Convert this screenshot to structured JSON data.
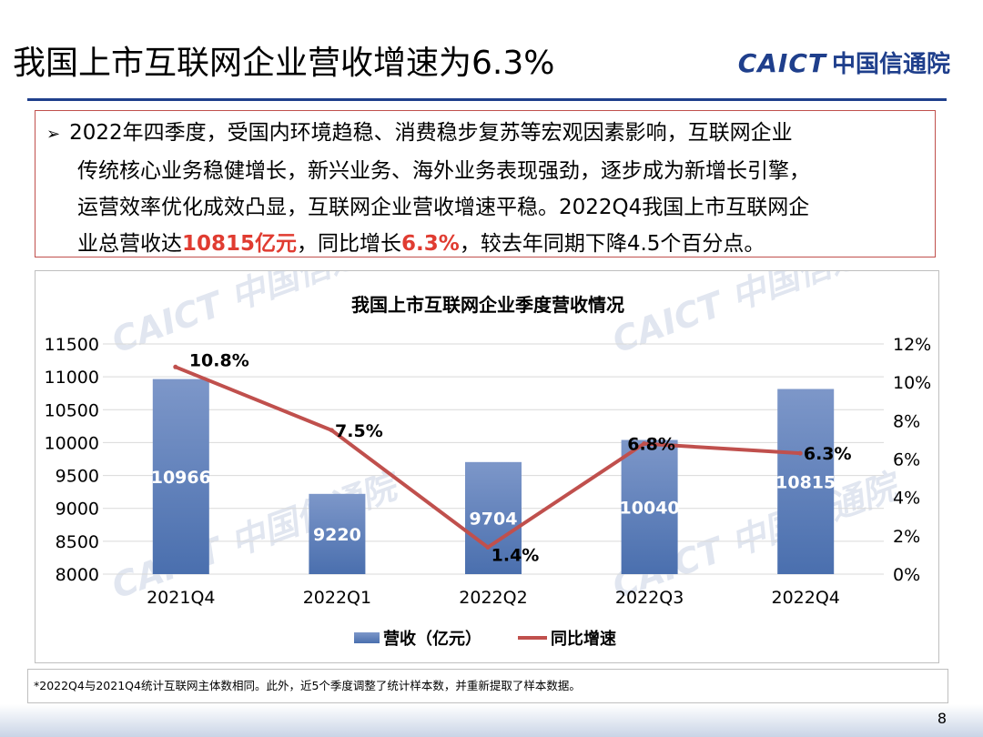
{
  "slide": {
    "title": "我国上市互联网企业营收增速为6.3%",
    "logo_en": "CAICT",
    "logo_cn": "中国信通院",
    "page_number": "8"
  },
  "summary": {
    "bullet": "➢",
    "line1": "2022年四季度，受国内环境趋稳、消费稳步复苏等宏观因素影响，互联网企业",
    "line2": "传统核心业务稳健增长，新兴业务、海外业务表现强劲，逐步成为新增长引擎，",
    "line3": "运营效率优化成效凸显，互联网企业营收增速平稳。2022Q4我国上市互联网企",
    "line4_pre": "业总营收达",
    "line4_hl1": "10815亿元",
    "line4_mid": "，同比增长",
    "line4_hl2": "6.3%",
    "line4_post": "，较去年同期下降4.5个百分点。"
  },
  "footnote": "*2022Q4与2021Q4统计互联网主体数相同。此外，近5个季度调整了统计样本数，并重新提取了样本数据。",
  "colors": {
    "bar_top": "#7d97c9",
    "bar_bottom": "#4a6fae",
    "line": "#c0504d",
    "accent": "#e03c31",
    "brand": "#1f3f8c"
  },
  "chart_data": {
    "type": "bar",
    "title": "我国上市互联网企业季度营收情况",
    "categories": [
      "2021Q4",
      "2022Q1",
      "2022Q2",
      "2022Q3",
      "2022Q4"
    ],
    "series": [
      {
        "name": "营收（亿元）",
        "type": "bar",
        "axis": "left",
        "values": [
          10966,
          9220,
          9704,
          10040,
          10815
        ],
        "labels": [
          "10966",
          "9220",
          "9704",
          "10040",
          "10815"
        ]
      },
      {
        "name": "同比增速",
        "type": "line",
        "axis": "right",
        "values": [
          10.8,
          7.5,
          1.4,
          6.8,
          6.3
        ],
        "labels": [
          "10.8%",
          "7.5%",
          "1.4%",
          "6.8%",
          "6.3%"
        ]
      }
    ],
    "y_left": {
      "min": 8000,
      "max": 11500,
      "ticks": [
        "8000",
        "8500",
        "9000",
        "9500",
        "10000",
        "10500",
        "11000",
        "11500"
      ]
    },
    "y_right": {
      "min": 0,
      "max": 12,
      "ticks": [
        "0%",
        "2%",
        "4%",
        "6%",
        "8%",
        "10%",
        "12%"
      ]
    },
    "grid": true,
    "legend_position": "bottom"
  }
}
